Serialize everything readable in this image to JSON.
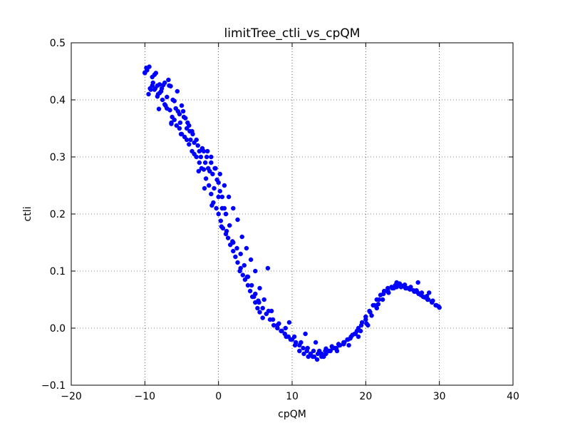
{
  "chart_data": {
    "type": "scatter",
    "title": "limitTree_ctli_vs_cpQM",
    "xlabel": "cpQM",
    "ylabel": "ctli",
    "xlim": [
      -20,
      40
    ],
    "ylim": [
      -0.1,
      0.5
    ],
    "xticks": [
      -20,
      -10,
      0,
      10,
      20,
      30,
      40
    ],
    "xtick_labels": [
      "−20",
      "−10",
      "0",
      "10",
      "20",
      "30",
      "40"
    ],
    "yticks": [
      -0.1,
      0.0,
      0.1,
      0.2,
      0.3,
      0.4,
      0.5
    ],
    "ytick_labels": [
      "−0.1",
      "0.0",
      "0.1",
      "0.2",
      "0.3",
      "0.4",
      "0.5"
    ],
    "grid": true,
    "marker_color": "#0000ff",
    "series": [
      {
        "x": [
          -10.0,
          -9.8,
          -9.5,
          -9.4,
          -9.2,
          -9.0,
          -8.9,
          -8.7,
          -8.6,
          -8.5,
          -8.3,
          -8.2,
          -8.0,
          -7.8,
          -7.7,
          -7.5,
          -7.3,
          -7.2,
          -7.0,
          -6.8,
          -6.7,
          -6.5,
          -6.4,
          -6.2,
          -6.0,
          -5.8,
          -5.6,
          -5.5,
          -5.3,
          -5.2,
          -5.0,
          -4.8,
          -4.7,
          -4.5,
          -4.3,
          -4.2,
          -4.0,
          -3.8,
          -3.6,
          -3.5,
          -3.3,
          -3.0,
          -2.8,
          -2.6,
          -2.4,
          -2.2,
          -2.0,
          -1.8,
          -1.6,
          -1.4,
          -1.2,
          -1.0,
          -0.8,
          -0.6,
          -0.4,
          -0.2,
          0.0,
          0.2,
          0.5,
          0.8,
          1.0,
          -10.0,
          -9.7,
          -9.3,
          -9.0,
          -8.7,
          -8.3,
          -8.0,
          -7.6,
          -7.3,
          -7.0,
          -6.6,
          -6.3,
          -6.0,
          -5.7,
          -5.3,
          -5.0,
          -4.6,
          -4.3,
          -4.0,
          -3.6,
          -3.3,
          -3.0,
          -2.6,
          -2.3,
          -2.0,
          -1.7,
          -1.3,
          -1.0,
          -0.7,
          -0.3,
          0.0,
          0.3,
          0.6,
          1.0,
          1.3,
          1.6,
          2.0,
          2.3,
          2.6,
          3.0,
          3.3,
          3.6,
          4.0,
          4.3,
          4.6,
          5.0,
          5.3,
          5.6,
          6.0,
          -1.5,
          -1.0,
          -0.5,
          0.0,
          0.5,
          1.0,
          1.5,
          2.0,
          2.5,
          3.0,
          3.5,
          4.0,
          4.5,
          5.0,
          5.5,
          6.0,
          6.5,
          7.0,
          7.5,
          8.0,
          8.5,
          9.0,
          9.5,
          10.0,
          10.5,
          11.0,
          11.5,
          12.0,
          12.5,
          13.0,
          13.5,
          14.0,
          14.5,
          15.0,
          15.5,
          16.0,
          16.5,
          17.0,
          17.5,
          18.0,
          18.5,
          19.0,
          19.5,
          20.0,
          20.5,
          21.0,
          21.5,
          22.0,
          22.5,
          23.0,
          23.5,
          24.0,
          24.5,
          25.0,
          25.5,
          26.0,
          26.5,
          27.0,
          27.5,
          28.0,
          28.5,
          29.0,
          29.5,
          30.0,
          0.2,
          0.8,
          1.4,
          2.0,
          2.6,
          3.2,
          3.8,
          4.4,
          5.0,
          5.6,
          6.2,
          6.8,
          7.4,
          8.0,
          8.6,
          9.2,
          9.8,
          10.4,
          11.0,
          11.6,
          12.2,
          12.8,
          13.4,
          14.0,
          14.6,
          15.2,
          15.8,
          16.4,
          17.0,
          17.6,
          18.2,
          18.8,
          19.4,
          20.0,
          20.6,
          21.2,
          21.8,
          22.4,
          23.0,
          23.6,
          24.2,
          24.8,
          25.4,
          26.0,
          26.6,
          27.2,
          27.8,
          28.4,
          29.0,
          29.6,
          8.2,
          9.1,
          10.3,
          11.2,
          12.1,
          12.9,
          13.7,
          14.6,
          15.4,
          16.3,
          17.1,
          17.9,
          18.6,
          19.3,
          20.1,
          20.8,
          21.5,
          22.3,
          23.1,
          23.8,
          24.6,
          25.3,
          26.1,
          26.9,
          27.6,
          28.3,
          29.1,
          29.9,
          4.8,
          5.4,
          6.7,
          7.2,
          9.6,
          11.8,
          13.2,
          14.3,
          16.1,
          17.7,
          19.0,
          20.3,
          21.7,
          22.9,
          24.2,
          25.7,
          27.1,
          28.6,
          -8.1,
          -6.4,
          -5.1,
          -3.9,
          -2.7,
          -1.9,
          -0.9,
          0.4,
          1.1,
          1.9,
          2.9,
          3.9
        ],
        "y": [
          0.447,
          0.456,
          0.41,
          0.458,
          0.418,
          0.44,
          0.43,
          0.444,
          0.42,
          0.447,
          0.425,
          0.41,
          0.427,
          0.415,
          0.42,
          0.426,
          0.43,
          0.39,
          0.405,
          0.435,
          0.425,
          0.424,
          0.36,
          0.4,
          0.398,
          0.385,
          0.415,
          0.38,
          0.375,
          0.36,
          0.39,
          0.38,
          0.37,
          0.368,
          0.35,
          0.36,
          0.355,
          0.33,
          0.345,
          0.34,
          0.325,
          0.33,
          0.32,
          0.31,
          0.3,
          0.315,
          0.31,
          0.29,
          0.3,
          0.28,
          0.275,
          0.29,
          0.27,
          0.245,
          0.28,
          0.26,
          0.255,
          0.24,
          0.23,
          0.21,
          0.2,
          0.448,
          0.452,
          0.42,
          0.425,
          0.418,
          0.406,
          0.412,
          0.4,
          0.392,
          0.385,
          0.382,
          0.37,
          0.365,
          0.355,
          0.35,
          0.34,
          0.335,
          0.33,
          0.322,
          0.31,
          0.305,
          0.3,
          0.29,
          0.28,
          0.278,
          0.262,
          0.25,
          0.235,
          0.22,
          0.21,
          0.2,
          0.188,
          0.175,
          0.165,
          0.158,
          0.146,
          0.135,
          0.125,
          0.115,
          0.105,
          0.093,
          0.085,
          0.075,
          0.065,
          0.055,
          0.045,
          0.035,
          0.028,
          0.018,
          0.31,
          0.3,
          0.28,
          0.23,
          0.21,
          0.2,
          0.18,
          0.15,
          0.14,
          0.13,
          0.11,
          0.09,
          0.075,
          0.06,
          0.045,
          0.035,
          0.025,
          0.015,
          0.005,
          0.0,
          -0.005,
          -0.01,
          -0.015,
          -0.02,
          -0.025,
          -0.03,
          -0.035,
          -0.04,
          -0.045,
          -0.05,
          -0.045,
          -0.045,
          -0.04,
          -0.04,
          -0.035,
          -0.035,
          -0.03,
          -0.025,
          -0.02,
          -0.015,
          -0.01,
          0.0,
          0.01,
          0.02,
          0.03,
          0.04,
          0.05,
          0.058,
          0.065,
          0.07,
          0.072,
          0.075,
          0.075,
          0.074,
          0.07,
          0.068,
          0.066,
          0.063,
          0.058,
          0.054,
          0.05,
          0.046,
          0.04,
          0.036,
          0.27,
          0.25,
          0.23,
          0.21,
          0.19,
          0.16,
          0.14,
          0.12,
          0.1,
          0.07,
          0.05,
          0.03,
          0.015,
          0.005,
          -0.005,
          -0.015,
          -0.02,
          -0.03,
          -0.04,
          -0.045,
          -0.05,
          -0.05,
          -0.055,
          -0.05,
          -0.045,
          -0.04,
          -0.035,
          -0.03,
          -0.028,
          -0.02,
          -0.012,
          -0.005,
          0.005,
          0.015,
          0.028,
          0.04,
          0.05,
          0.06,
          0.066,
          0.07,
          0.072,
          0.072,
          0.07,
          0.068,
          0.064,
          0.06,
          0.055,
          0.05,
          0.045,
          0.04,
          0.008,
          0.0,
          -0.015,
          -0.025,
          -0.035,
          -0.04,
          -0.04,
          -0.036,
          -0.032,
          -0.028,
          -0.025,
          -0.018,
          -0.01,
          -0.005,
          0.008,
          0.022,
          0.035,
          0.05,
          0.062,
          0.07,
          0.078,
          0.076,
          0.072,
          0.066,
          0.062,
          0.056,
          0.048,
          0.038,
          0.055,
          0.048,
          0.105,
          0.03,
          0.01,
          -0.01,
          -0.025,
          -0.05,
          -0.04,
          -0.03,
          -0.015,
          0.005,
          0.042,
          0.065,
          0.08,
          0.07,
          0.08,
          0.062,
          0.384,
          0.358,
          0.34,
          0.345,
          0.275,
          0.245,
          0.215,
          0.178,
          0.17,
          0.152,
          0.1,
          0.09
        ]
      }
    ]
  }
}
